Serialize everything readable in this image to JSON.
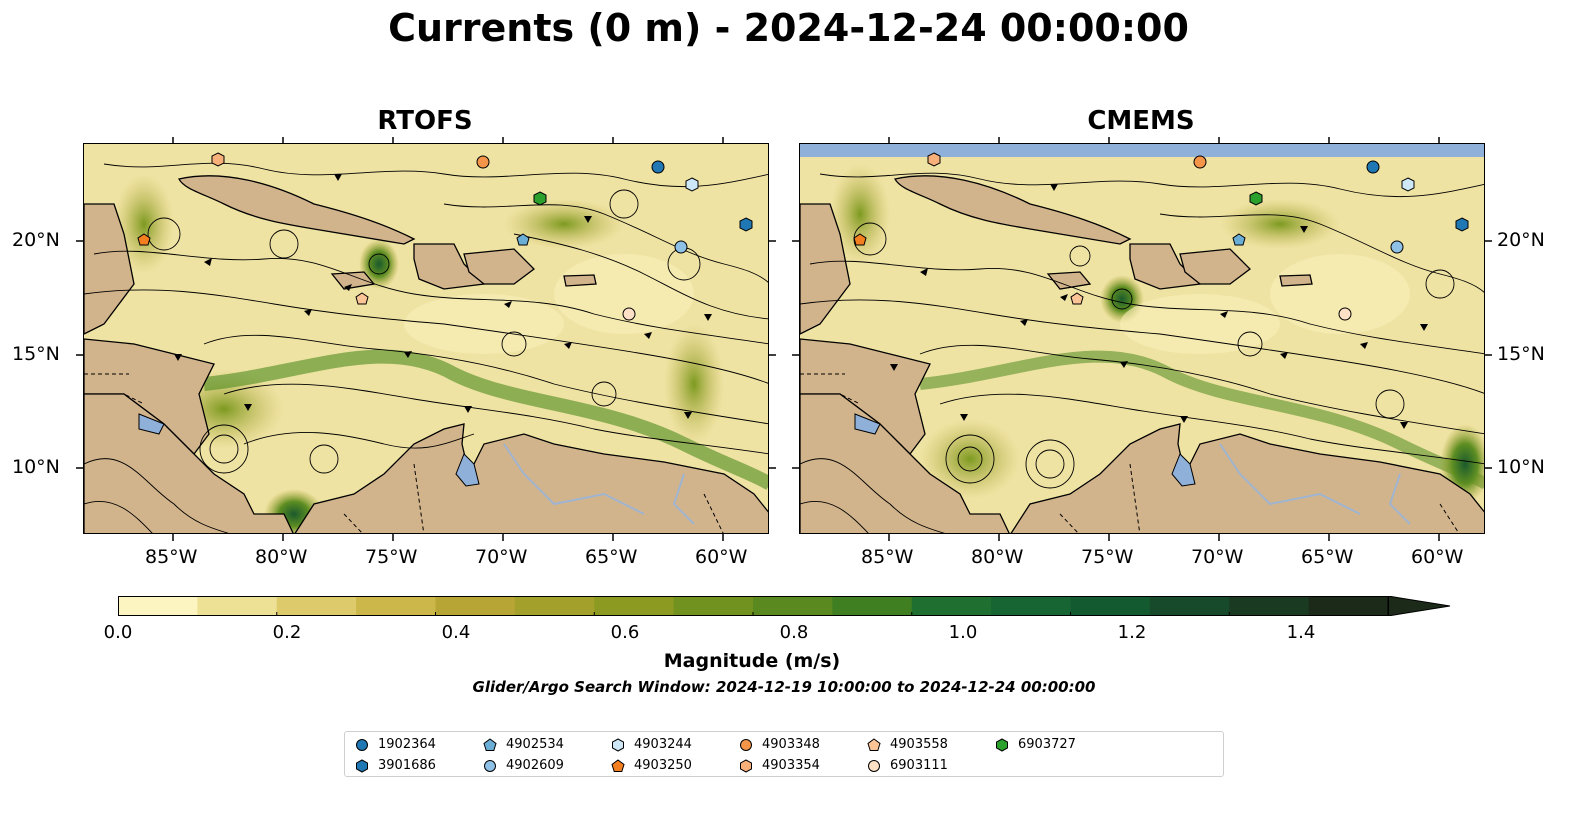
{
  "figure": {
    "title": "Currents (0 m) - 2024-12-24 00:00:00",
    "subtitle": "Glider/Argo Search Window: 2024-12-19 10:00:00 to 2024-12-24 00:00:00"
  },
  "panels": [
    {
      "title": "RTOFS"
    },
    {
      "title": "CMEMS"
    }
  ],
  "axes": {
    "lon_ticks": [
      "85°W",
      "80°W",
      "75°W",
      "70°W",
      "65°W",
      "60°W"
    ],
    "lat_ticks": [
      "20°N",
      "15°N",
      "10°N"
    ]
  },
  "colorbar": {
    "label": "Magnitude (m/s)",
    "ticks": [
      "0.0",
      "0.2",
      "0.4",
      "0.6",
      "0.8",
      "1.0",
      "1.2",
      "1.4"
    ],
    "range": [
      0,
      1.6
    ],
    "extend": "max",
    "colors": [
      "#fcf5c1",
      "#ede195",
      "#ddca6a",
      "#ccb74a",
      "#b7a535",
      "#a3a02b",
      "#8c9a22",
      "#72921f",
      "#5a8a1f",
      "#3f7f22",
      "#1f7030",
      "#166533",
      "#135a30",
      "#174a2a",
      "#1b3a22",
      "#1c2a1a"
    ]
  },
  "legend": [
    {
      "label": "1902364",
      "marker": "circle",
      "color": "#1f77b4"
    },
    {
      "label": "3901686",
      "marker": "hexagon",
      "color": "#1f77b4"
    },
    {
      "label": "4902534",
      "marker": "pentagon",
      "color": "#6aaed6"
    },
    {
      "label": "4902609",
      "marker": "circle",
      "color": "#8fc0e6"
    },
    {
      "label": "4903244",
      "marker": "hexagon",
      "color": "#cfe8f7"
    },
    {
      "label": "4903250",
      "marker": "pentagon",
      "color": "#f47f20"
    },
    {
      "label": "4903348",
      "marker": "circle",
      "color": "#f4954a"
    },
    {
      "label": "4903354",
      "marker": "hexagon",
      "color": "#f8b07a"
    },
    {
      "label": "4903558",
      "marker": "pentagon",
      "color": "#fbc497"
    },
    {
      "label": "6903111",
      "marker": "circle",
      "color": "#fde0c5"
    },
    {
      "label": "6903727",
      "marker": "hexagon",
      "color": "#2ca02c"
    }
  ],
  "colors": {
    "land": "#d2b48c",
    "ocean_bg": "#efe3a3",
    "lake": "#8fb0d9",
    "streamline": "#000000"
  }
}
